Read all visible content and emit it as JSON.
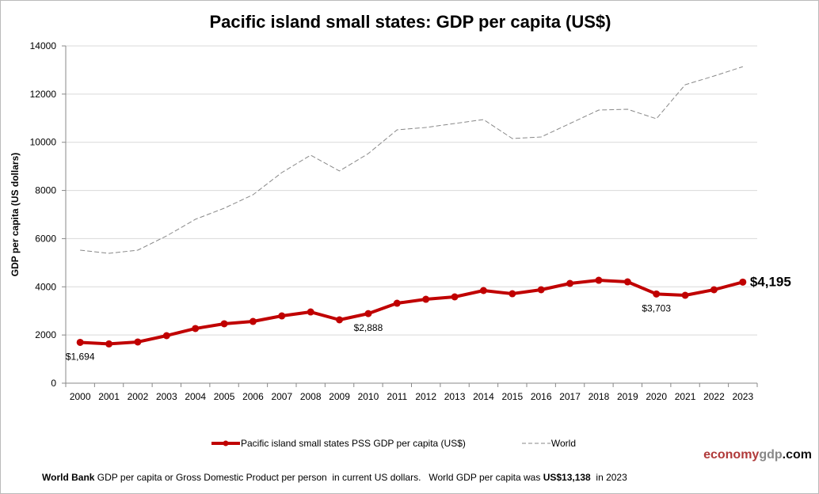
{
  "chart_data": {
    "type": "line",
    "title": "Pacific island small states: GDP per capita (US$)",
    "ylabel": "GDP per capita (US dollars)",
    "xlabel": "",
    "ylim": [
      0,
      14000
    ],
    "yticks": [
      0,
      2000,
      4000,
      6000,
      8000,
      10000,
      12000,
      14000
    ],
    "grid": true,
    "legend_position": "bottom",
    "categories": [
      "2000",
      "2001",
      "2002",
      "2003",
      "2004",
      "2005",
      "2006",
      "2007",
      "2008",
      "2009",
      "2010",
      "2011",
      "2012",
      "2013",
      "2014",
      "2015",
      "2016",
      "2017",
      "2018",
      "2019",
      "2020",
      "2021",
      "2022",
      "2023"
    ],
    "series": [
      {
        "name": "Pacific island small states PSS GDP per capita (US$)",
        "color": "#c00000",
        "style": "solid-markers",
        "values": [
          1694,
          1630,
          1710,
          1972,
          2268,
          2465,
          2563,
          2793,
          2957,
          2629,
          2888,
          3319,
          3483,
          3582,
          3845,
          3713,
          3878,
          4141,
          4272,
          4206,
          3703,
          3648,
          3878,
          4195
        ]
      },
      {
        "name": "World",
        "color": "#888888",
        "style": "dashed",
        "values": [
          5521,
          5390,
          5521,
          6113,
          6803,
          7263,
          7822,
          8742,
          9465,
          8808,
          9530,
          10516,
          10614,
          10779,
          10943,
          10155,
          10220,
          10779,
          11338,
          11371,
          10976,
          12389,
          12750,
          13138
        ]
      }
    ],
    "annotations": [
      {
        "year": "2000",
        "text": "$1,694"
      },
      {
        "year": "2010",
        "text": "$2,888"
      },
      {
        "year": "2020",
        "text": "$3,703"
      },
      {
        "year": "2023",
        "text": "$4,195",
        "emphasis": true
      }
    ]
  },
  "logo": {
    "part1": "economy",
    "part2": "gdp",
    "part3": ".com"
  },
  "footnote": {
    "source": "World Bank",
    "text": " GDP per capita or Gross Domestic Product per person  in current US dollars.   World GDP per capita was ",
    "value": "US$13,138",
    "tail": "  in 2023"
  }
}
